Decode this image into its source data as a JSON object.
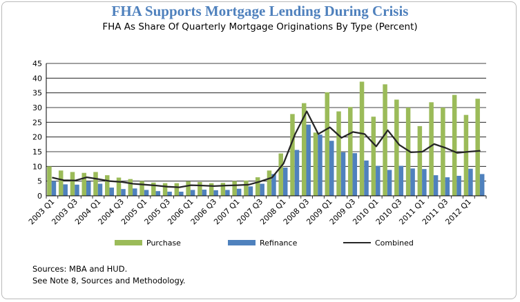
{
  "title": "FHA Supports Mortgage Lending During Crisis",
  "subtitle": "FHA As Share Of Quarterly Mortgage Originations By Type (Percent)",
  "sources": [
    "Sources:  MBA and HUD.",
    "See Note 8, Sources and Methodology."
  ],
  "colors": {
    "purchase": "#9bbb59",
    "refinance": "#4f81bd",
    "combined": "#262626",
    "title": "#4f81bd"
  },
  "chart_data": {
    "type": "bar",
    "ylim": [
      0,
      45
    ],
    "yticks": [
      0,
      5,
      10,
      15,
      20,
      25,
      30,
      35,
      40,
      45
    ],
    "grid": true,
    "legend_position": "bottom",
    "xtick_labels": [
      "2003 Q1",
      "2003 Q3",
      "2004 Q1",
      "2004 Q3",
      "2005 Q1",
      "2005 Q3",
      "2006 Q1",
      "2006 Q3",
      "2007 Q1",
      "2007 Q3",
      "2008 Q1",
      "2008 Q3",
      "2009 Q1",
      "2009 Q3",
      "2010 Q1",
      "2010 Q3",
      "2011 Q1",
      "2011 Q3",
      "2012 Q1"
    ],
    "categories": [
      "2003 Q1",
      "2003 Q2",
      "2003 Q3",
      "2003 Q4",
      "2004 Q1",
      "2004 Q2",
      "2004 Q3",
      "2004 Q4",
      "2005 Q1",
      "2005 Q2",
      "2005 Q3",
      "2005 Q4",
      "2006 Q1",
      "2006 Q2",
      "2006 Q3",
      "2006 Q4",
      "2007 Q1",
      "2007 Q2",
      "2007 Q3",
      "2007 Q4",
      "2008 Q1",
      "2008 Q2",
      "2008 Q3",
      "2008 Q4",
      "2009 Q1",
      "2009 Q2",
      "2009 Q3",
      "2009 Q4",
      "2010 Q1",
      "2010 Q2",
      "2010 Q3",
      "2010 Q4",
      "2011 Q1",
      "2011 Q2",
      "2011 Q3",
      "2011 Q4",
      "2012 Q1",
      "2012 Q2"
    ],
    "series": [
      {
        "name": "Purchase",
        "kind": "bar",
        "values": [
          10.0,
          8.6,
          8.1,
          7.8,
          8.1,
          7.0,
          6.2,
          5.7,
          5.0,
          4.5,
          4.3,
          4.3,
          4.9,
          4.7,
          4.3,
          4.4,
          5.0,
          5.2,
          6.3,
          8.6,
          14.4,
          27.8,
          31.5,
          21.5,
          35.2,
          28.7,
          30.2,
          38.8,
          26.9,
          37.9,
          32.7,
          30.0,
          23.7,
          31.8,
          30.0,
          34.3,
          27.5,
          33.0
        ]
      },
      {
        "name": "Refinance",
        "kind": "bar",
        "values": [
          5.0,
          3.9,
          3.8,
          4.9,
          4.1,
          2.8,
          2.3,
          2.5,
          2.0,
          1.6,
          1.4,
          1.4,
          2.0,
          2.1,
          1.9,
          2.0,
          2.4,
          3.2,
          4.1,
          7.4,
          9.6,
          15.6,
          24.2,
          20.8,
          18.7,
          14.8,
          14.5,
          12.0,
          10.2,
          8.8,
          10.2,
          9.3,
          9.1,
          7.0,
          6.3,
          6.8,
          9.2,
          7.4
        ]
      },
      {
        "name": "Combined",
        "kind": "line",
        "values": [
          6.2,
          5.3,
          5.2,
          6.3,
          5.7,
          5.0,
          4.7,
          4.1,
          3.8,
          3.5,
          3.1,
          2.9,
          3.6,
          3.5,
          3.3,
          3.5,
          3.6,
          3.8,
          4.9,
          6.2,
          11.0,
          21.0,
          28.7,
          21.0,
          23.3,
          19.7,
          21.7,
          21.0,
          16.8,
          22.3,
          17.3,
          14.8,
          15.0,
          17.6,
          16.3,
          14.6,
          15.0,
          15.3
        ]
      }
    ]
  }
}
